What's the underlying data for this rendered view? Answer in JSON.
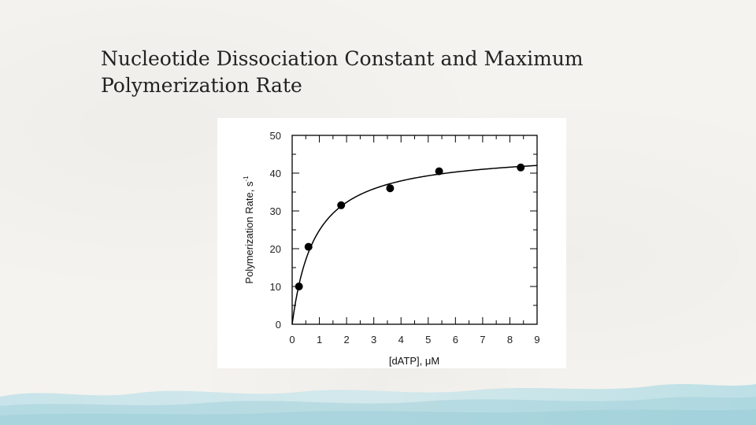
{
  "slide": {
    "title_line1": "Nucleotide Dissociation Constant and Maximum",
    "title_line2": "Polymerization Rate"
  },
  "chart_data": {
    "type": "scatter",
    "xlabel": "[dATP], μM",
    "ylabel": "Polymerization Rate, s",
    "ylabel_superscript": "-1",
    "xlim": [
      0,
      9
    ],
    "ylim": [
      0,
      50
    ],
    "x_ticks": [
      "0",
      "1",
      "2",
      "3",
      "4",
      "5",
      "6",
      "7",
      "8",
      "9"
    ],
    "y_ticks": [
      "0",
      "10",
      "20",
      "30",
      "40",
      "50"
    ],
    "grid": false,
    "points": [
      {
        "x": 0.25,
        "y": 10
      },
      {
        "x": 0.6,
        "y": 20.5
      },
      {
        "x": 1.8,
        "y": 31.5
      },
      {
        "x": 3.6,
        "y": 36
      },
      {
        "x": 5.4,
        "y": 40.5
      },
      {
        "x": 8.4,
        "y": 41.5
      }
    ],
    "fit_curve": {
      "model": "hyperbolic",
      "vmax": 46,
      "kd": 0.85
    },
    "colors": {
      "marks": "#000000",
      "background": "#ffffff",
      "accent": "#9fd3dd"
    }
  }
}
